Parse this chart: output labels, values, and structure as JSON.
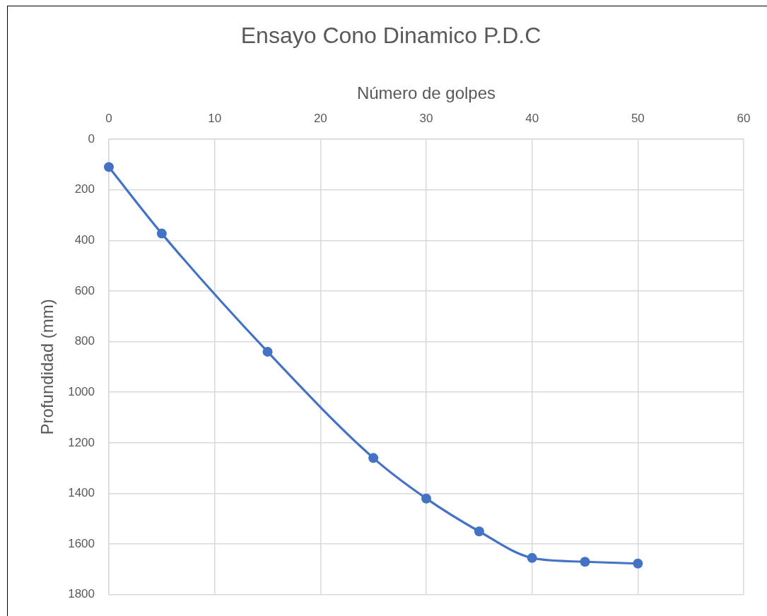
{
  "chart_data": {
    "type": "line",
    "title": "Ensayo Cono Dinamico P.D.C",
    "xlabel": "Número de golpes",
    "ylabel": "Profundidad (mm)",
    "x": [
      0,
      5,
      15,
      25,
      30,
      35,
      40,
      45,
      50
    ],
    "series": [
      {
        "color": "#4472c4",
        "values": [
          110,
          373,
          840,
          1260,
          1420,
          1550,
          1655,
          1670,
          1677
        ]
      }
    ],
    "xlim": [
      0,
      60
    ],
    "xticks": [
      0,
      10,
      20,
      30,
      40,
      50,
      60
    ],
    "ylim": [
      1800,
      0
    ],
    "yticks": [
      0,
      200,
      400,
      600,
      800,
      1000,
      1200,
      1400,
      1600,
      1800
    ],
    "grid": true,
    "marker": "circle",
    "line_style": "solid"
  }
}
